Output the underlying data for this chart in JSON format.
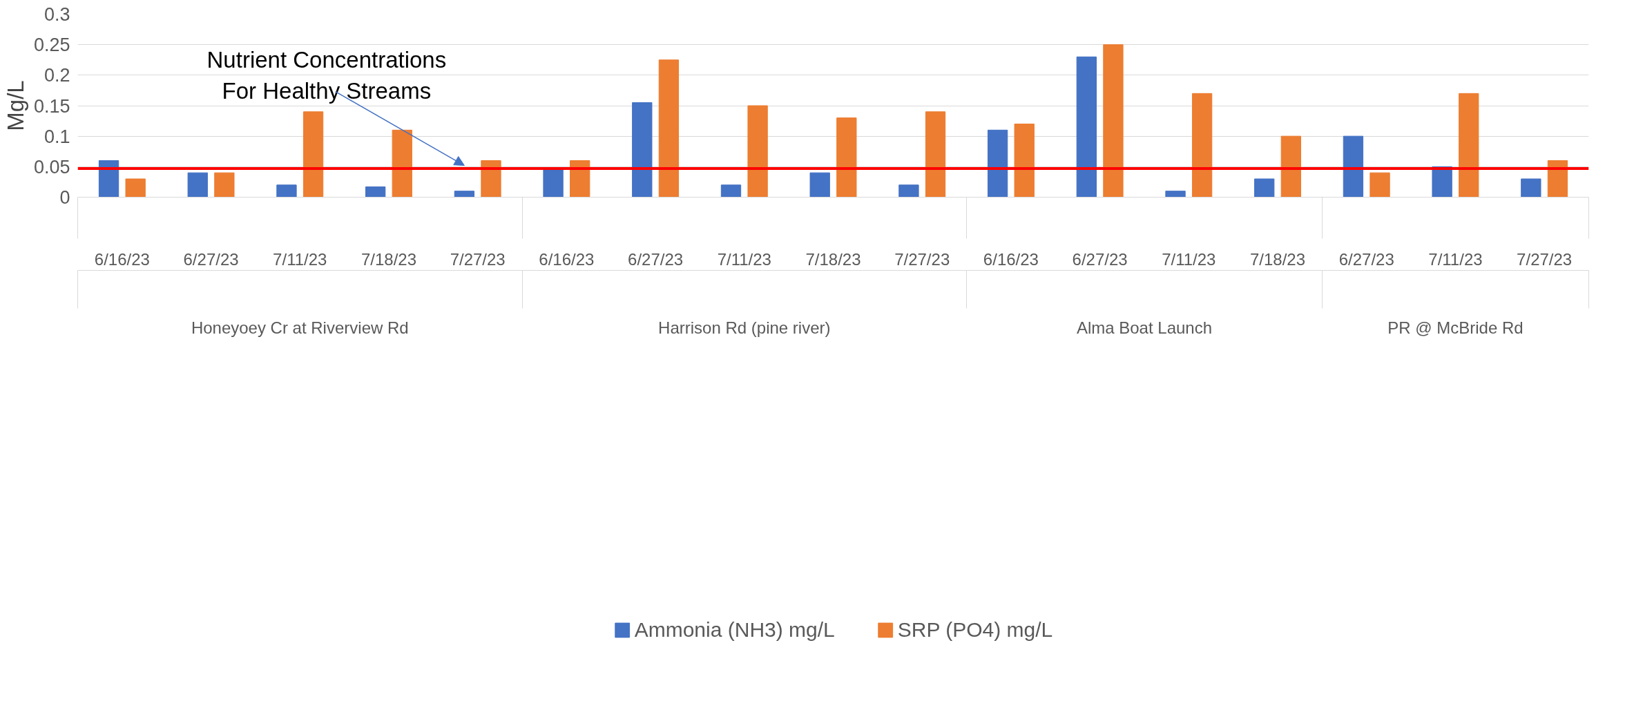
{
  "chart_data": {
    "type": "bar",
    "ylabel": "Mg/L",
    "categories": [
      "6/16/23",
      "6/27/23",
      "7/11/23",
      "7/18/23",
      "7/27/23",
      "6/16/23",
      "6/27/23",
      "7/11/23",
      "7/18/23",
      "7/27/23",
      "6/16/23",
      "6/27/23",
      "7/11/23",
      "7/18/23",
      "6/27/23",
      "7/11/23",
      "7/27/23"
    ],
    "series": [
      {
        "name": "Ammonia (NH3) mg/L",
        "color": "#4472c4",
        "values": [
          0.06,
          0.04,
          0.02,
          0.017,
          0.01,
          0.045,
          0.155,
          0.02,
          0.04,
          0.02,
          0.11,
          0.23,
          0.01,
          0.03,
          0.1,
          0.05,
          0.03
        ]
      },
      {
        "name": "SRP (PO4) mg/L",
        "color": "#ed7d31",
        "values": [
          0.03,
          0.04,
          0.14,
          0.11,
          0.06,
          0.06,
          0.225,
          0.15,
          0.13,
          0.14,
          0.12,
          0.25,
          0.17,
          0.1,
          0.04,
          0.17,
          0.06
        ]
      }
    ],
    "annotations": [
      "Honeyoey Cr at Riverview Rd",
      "Harrison Rd (pine river)",
      "Alma Boat Launch",
      "PR @ McBride Rd"
    ],
    "ref_lines": [
      {
        "axis": "y",
        "value": 0.047,
        "label": "Nutrient Concentrations\nFor Healthy Streams",
        "color": "#ff0000"
      }
    ],
    "ylim": [
      0,
      0.3
    ],
    "yticks": [
      0,
      0.05,
      0.1,
      0.15,
      0.2,
      0.25,
      0.3
    ],
    "grid": "y",
    "legend": "bottom"
  }
}
